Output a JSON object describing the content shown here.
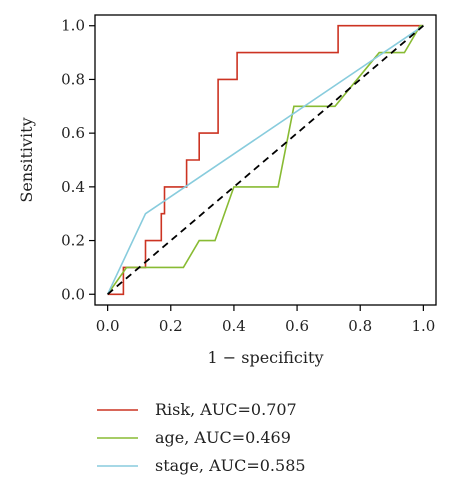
{
  "chart_data": {
    "type": "line",
    "title": "",
    "xlabel": "1 − specificity",
    "ylabel": "Sensitivity",
    "xlim": [
      -0.04,
      1.04
    ],
    "ylim": [
      -0.04,
      1.04
    ],
    "xticks": [
      0.0,
      0.2,
      0.4,
      0.6,
      0.8,
      1.0
    ],
    "yticks": [
      0.0,
      0.2,
      0.4,
      0.6,
      0.8,
      1.0
    ],
    "xtick_labels": [
      "0.0",
      "0.2",
      "0.4",
      "0.6",
      "0.8",
      "1.0"
    ],
    "ytick_labels": [
      "0.0",
      "0.2",
      "0.4",
      "0.6",
      "0.8",
      "1.0"
    ],
    "grid": false,
    "legend_position": "below",
    "reference_line": {
      "style": "dashed",
      "color": "#000000",
      "x": [
        0,
        1
      ],
      "y": [
        0,
        1
      ]
    },
    "series": [
      {
        "name": "Risk, AUC=0.707",
        "color": "#cc3322",
        "x": [
          0.0,
          0.05,
          0.05,
          0.12,
          0.12,
          0.15,
          0.15,
          0.17,
          0.17,
          0.18,
          0.18,
          0.25,
          0.25,
          0.29,
          0.29,
          0.33,
          0.33,
          0.35,
          0.35,
          0.41,
          0.41,
          0.73,
          0.73,
          1.0
        ],
        "y": [
          0.0,
          0.0,
          0.1,
          0.1,
          0.2,
          0.2,
          0.2,
          0.2,
          0.3,
          0.3,
          0.4,
          0.4,
          0.5,
          0.5,
          0.6,
          0.6,
          0.6,
          0.6,
          0.8,
          0.8,
          0.9,
          0.9,
          1.0,
          1.0
        ]
      },
      {
        "name": "age, AUC=0.469",
        "color": "#88bb33",
        "x": [
          0.0,
          0.06,
          0.06,
          0.24,
          0.29,
          0.34,
          0.4,
          0.45,
          0.54,
          0.59,
          0.72,
          0.86,
          0.94,
          0.99,
          1.0
        ],
        "y": [
          0.0,
          0.1,
          0.1,
          0.1,
          0.2,
          0.2,
          0.4,
          0.4,
          0.4,
          0.7,
          0.7,
          0.9,
          0.9,
          1.0,
          1.0
        ]
      },
      {
        "name": "stage, AUC=0.585",
        "color": "#88ccdd",
        "x": [
          0.0,
          0.12,
          1.0
        ],
        "y": [
          0.0,
          0.3,
          1.0
        ]
      }
    ]
  }
}
